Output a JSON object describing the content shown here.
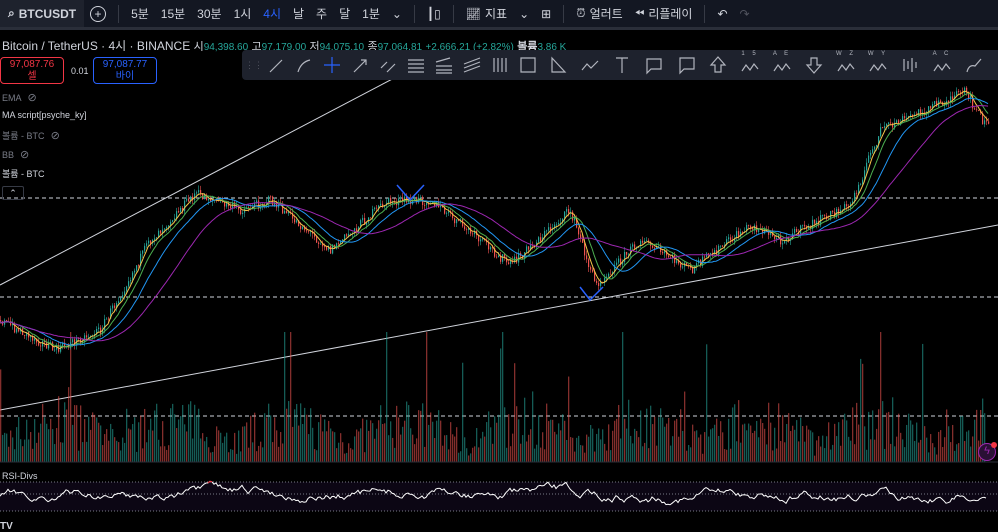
{
  "toolbar": {
    "symbol": "BTCUSDT",
    "intervals": [
      "5분",
      "15분",
      "30분",
      "1시",
      "4시",
      "날",
      "주",
      "달",
      "1분"
    ],
    "active_interval": "4시",
    "indicators_label": "지표",
    "alert_label": "얼러트",
    "replay_label": "리플레이"
  },
  "legend": {
    "title": "Bitcoin / TetherUS · 4시 · BINANCE",
    "open_label": "시",
    "open": "94,398.60",
    "high_label": "고",
    "high": "97,179.00",
    "low_label": "저",
    "low": "94,075.10",
    "close_label": "종",
    "close": "97,064.81",
    "change": "+2,666.21 (+2.82%)",
    "volume_label": "볼륨",
    "volume": "3.86 K"
  },
  "trade": {
    "sell_price": "97,087.76",
    "sell_label": "셀",
    "spread": "0.01",
    "buy_price": "97,087.77",
    "buy_label": "바이"
  },
  "indicators": [
    {
      "name": "EMA",
      "hidden": true
    },
    {
      "name": "MA script[psyche_ky]",
      "hidden": false
    },
    {
      "name": "볼륨 - BTC",
      "hidden": true
    },
    {
      "name": "BB",
      "hidden": true
    },
    {
      "name": "볼륨 - BTC",
      "hidden": false
    }
  ],
  "drawing_tools": [
    "trend-line",
    "ray",
    "cross-line",
    "arrow",
    "parallel-channel",
    "horizontal-lines",
    "fib-retracement",
    "fib-fan",
    "pitchfork",
    "rectangle",
    "triangle",
    "path",
    "text",
    "callout",
    "comment",
    "arrow-up",
    "elliott-impulse-15",
    "elliott-ae",
    "arrow-down",
    "elliott-wz",
    "elliott-wy",
    "long-position",
    "abcd",
    "brush"
  ],
  "drawing_labels": {
    "elliott_15": "1 5",
    "elliott_ae": "A E",
    "elliott_wz": "W Z",
    "elliott_wy": "W Y",
    "abcd": "A C"
  },
  "rsi": {
    "label": "RSI-Divs"
  },
  "colors": {
    "up": "#26a69a",
    "down": "#ef5350",
    "accent": "#2962ff",
    "ma_fast": "#f7c548",
    "ma_mid": "#4caf50",
    "ma_slow": "#2196f3",
    "ma_long": "#9c27b0"
  }
}
